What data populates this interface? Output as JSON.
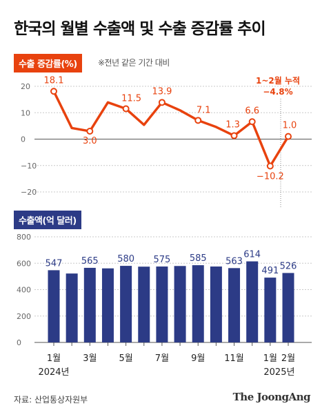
{
  "title": "한국의 월별 수출액 및 수출 증감률 추이",
  "source": "자료: 산업통상자원부",
  "brand": "The JoongAng",
  "colors": {
    "line": "#e8420e",
    "bar": "#2c3b86",
    "grid": "#c8c8c8"
  },
  "chart_data": [
    {
      "type": "line",
      "title": "수출 증감률(%)",
      "note": "※전년 같은 기간 대비",
      "ylim": [
        -20,
        20
      ],
      "yticks": [
        "20",
        "10",
        "0",
        "−10",
        "−20"
      ],
      "values": [
        18.1,
        4.2,
        3.0,
        13.9,
        11.5,
        5.4,
        13.9,
        10.9,
        7.1,
        4.6,
        1.3,
        6.6,
        -10.2,
        1.0
      ],
      "labels": [
        "18.1",
        "",
        "3.0",
        "",
        "11.5",
        "",
        "13.9",
        "",
        "7.1",
        "",
        "1.3",
        "6.6",
        "−10.2",
        "1.0"
      ],
      "annotation": {
        "line1": "1~2월 누적",
        "line2": "−4.8%"
      }
    },
    {
      "type": "bar",
      "title": "수출액(억 달러)",
      "ylim": [
        0,
        800
      ],
      "yticks": [
        "800",
        "600",
        "400",
        "200",
        "0"
      ],
      "values": [
        547,
        522,
        565,
        561,
        580,
        574,
        575,
        579,
        585,
        575,
        563,
        614,
        491,
        526
      ],
      "labels": [
        "547",
        "",
        "565",
        "",
        "580",
        "",
        "575",
        "",
        "585",
        "",
        "563",
        "614",
        "491",
        "526"
      ]
    }
  ],
  "x_axis": {
    "labels": [
      "1월",
      "",
      "3월",
      "",
      "5월",
      "",
      "7월",
      "",
      "9월",
      "",
      "11월",
      "",
      "1월",
      "2월"
    ],
    "year_labels": [
      "2024년",
      "2025년"
    ]
  }
}
